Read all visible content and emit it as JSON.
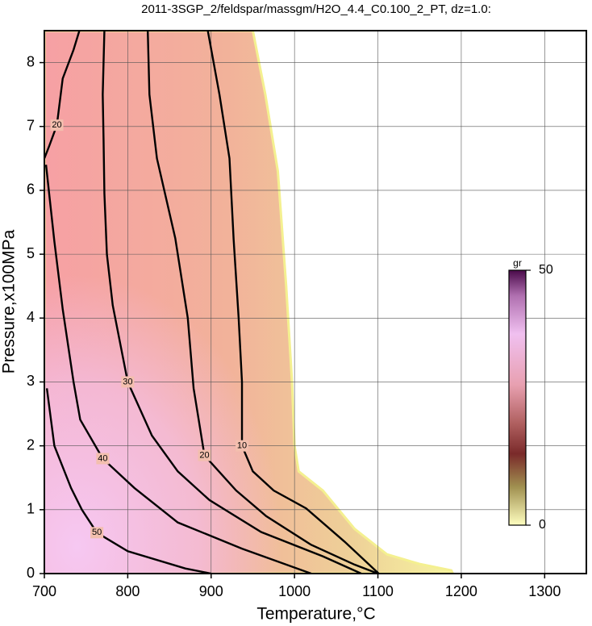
{
  "chart_data": {
    "type": "contour",
    "title": "2011-3SGP_2/feldspar/massgm/H2O_4.4_C0.100_2_PT, dz=1.0:",
    "x_label": "Temperature,°C",
    "y_label": "Pressure,x100MPa",
    "xlim": [
      700,
      1350
    ],
    "ylim": [
      0,
      8.5
    ],
    "xticks": [
      700,
      800,
      900,
      1000,
      1100,
      1200,
      1300
    ],
    "yticks": [
      0,
      1,
      2,
      3,
      4,
      5,
      6,
      7,
      8
    ],
    "grid": true,
    "extent": {
      "x": [
        950,
        965,
        980,
        990,
        997,
        1000,
        1005,
        1034,
        1072,
        1111,
        1150,
        1188,
        1190
      ],
      "y": [
        8.5,
        7.5,
        6.3,
        4.5,
        3,
        2,
        1.6,
        1.3,
        0.7,
        0.3,
        0.15,
        0.05,
        0
      ]
    },
    "contours": [
      {
        "level": 10,
        "x": [
          896,
          910,
          922,
          927,
          933,
          937,
          937,
          950,
          975,
          1014,
          1060,
          1101
        ],
        "y": [
          8.5,
          7.5,
          6.5,
          5.23,
          4,
          3,
          2,
          1.6,
          1.3,
          1.02,
          0.5,
          0
        ]
      },
      {
        "level": 20,
        "x": [
          824,
          826,
          835,
          857,
          872,
          879,
          892,
          930,
          966,
          1020,
          1072,
          1100
        ],
        "y": [
          8.5,
          7.5,
          6.5,
          5.25,
          4,
          2.9,
          1.85,
          1.3,
          0.9,
          0.45,
          0.14,
          0
        ]
      },
      {
        "level": 30,
        "x": [
          772,
          770,
          771,
          772,
          775,
          782,
          800,
          829,
          860,
          898,
          960,
          1034,
          1080
        ],
        "y": [
          8.5,
          7.5,
          6.8,
          5.95,
          5,
          4.2,
          3,
          2.16,
          1.6,
          1.15,
          0.65,
          0.27,
          0
        ]
      },
      {
        "level": 40,
        "x": [
          702,
          712,
          722,
          735,
          743,
          770,
          808,
          860,
          937,
          1020
        ],
        "y": [
          6.4,
          5.2,
          4.14,
          3,
          2.41,
          1.8,
          1.34,
          0.8,
          0.39,
          0
        ]
      },
      {
        "level": 50,
        "x": [
          703,
          712,
          732,
          745,
          763,
          800,
          869,
          900
        ],
        "y": [
          2.9,
          2,
          1.34,
          1,
          0.64,
          0.35,
          0.08,
          0
        ]
      },
      {
        "level": 20,
        "x": [
          742,
          735,
          722,
          715,
          706,
          700
        ],
        "y": [
          8.5,
          8.2,
          7.75,
          7.02,
          6.7,
          6.5
        ]
      }
    ],
    "colorbar": {
      "label": "gr",
      "lim": [
        0,
        50
      ],
      "ticks": [
        0,
        50
      ]
    }
  }
}
